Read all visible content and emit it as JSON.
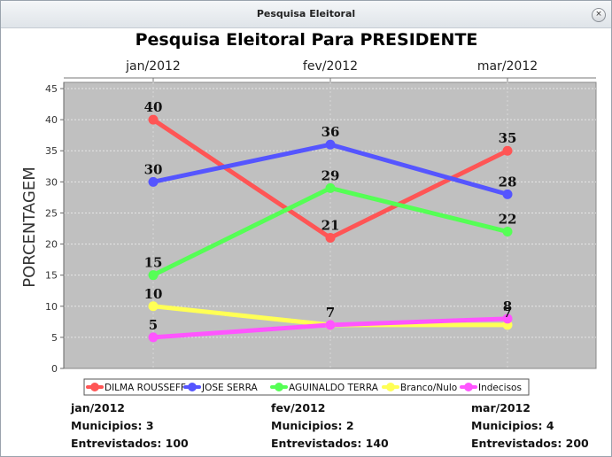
{
  "window": {
    "title": "Pesquisa Eleitoral",
    "close_symbol": "×"
  },
  "chart_data": {
    "type": "line",
    "title": "Pesquisa Eleitoral Para PRESIDENTE",
    "ylabel": "PORCENTAGEM",
    "xlabel": "",
    "categories": [
      "jan/2012",
      "fev/2012",
      "mar/2012"
    ],
    "ylim": [
      0,
      46
    ],
    "yticks": [
      0,
      5,
      10,
      15,
      20,
      25,
      30,
      35,
      40,
      45
    ],
    "grid": true,
    "legend_position": "bottom",
    "background": "#c0c0c0",
    "series": [
      {
        "name": "DILMA ROUSSEFF",
        "color": "#ff5555",
        "values": [
          40,
          21,
          35
        ],
        "labels": [
          "40",
          "21",
          "35"
        ]
      },
      {
        "name": "JOSE SERRA",
        "color": "#5555ff",
        "values": [
          30,
          36,
          28
        ],
        "labels": [
          "30",
          "36",
          "28"
        ]
      },
      {
        "name": "AGUINALDO TERRA",
        "color": "#55ff55",
        "values": [
          15,
          29,
          22
        ],
        "labels": [
          "15",
          "29",
          "22"
        ]
      },
      {
        "name": "Branco/Nulo",
        "color": "#ffff55",
        "values": [
          10,
          7,
          7
        ],
        "labels": [
          "10",
          "7",
          "7"
        ]
      },
      {
        "name": "Indecisos",
        "color": "#ff55ff",
        "values": [
          5,
          7,
          8
        ],
        "labels": [
          "5",
          "",
          "8"
        ]
      }
    ]
  },
  "summary": [
    {
      "month": "jan/2012",
      "municipios_label": "Municipios: 3",
      "entrevistados_label": "Entrevistados: 100"
    },
    {
      "month": "fev/2012",
      "municipios_label": "Municipios: 2",
      "entrevistados_label": "Entrevistados: 140"
    },
    {
      "month": "mar/2012",
      "municipios_label": "Municipios: 4",
      "entrevistados_label": "Entrevistados: 200"
    }
  ]
}
